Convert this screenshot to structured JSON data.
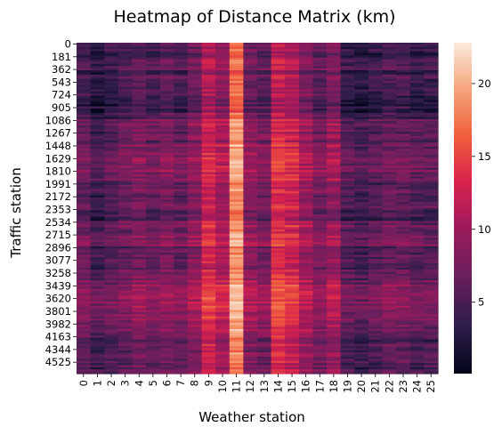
{
  "chart_data": {
    "type": "heatmap",
    "title": "Heatmap of Distance Matrix (km)",
    "xlabel": "Weather station",
    "ylabel": "Traffic station",
    "x_tick_labels": [
      "0",
      "1",
      "2",
      "3",
      "4",
      "5",
      "6",
      "7",
      "8",
      "9",
      "10",
      "11",
      "12",
      "13",
      "14",
      "15",
      "16",
      "17",
      "18",
      "19",
      "20",
      "21",
      "22",
      "23",
      "24",
      "25"
    ],
    "y_tick_labels": [
      "0",
      "181",
      "362",
      "543",
      "724",
      "905",
      "1086",
      "1267",
      "1448",
      "1629",
      "1810",
      "1991",
      "2172",
      "2353",
      "2534",
      "2715",
      "2896",
      "3077",
      "3258",
      "3439",
      "3620",
      "3801",
      "3982",
      "4163",
      "4344",
      "4525"
    ],
    "colorbar": {
      "min": 0.1,
      "max": 22.8,
      "ticks": [
        5,
        10,
        15,
        20
      ]
    },
    "column_mean_km": [
      6,
      4,
      5,
      6,
      7,
      6,
      7,
      6,
      8,
      12,
      10,
      18,
      8,
      7,
      13,
      12,
      9,
      7,
      9,
      5,
      4,
      5,
      6,
      6,
      5,
      5
    ],
    "row_band_offset_km": [
      -1.5,
      -1.2,
      -1.0,
      -2.0,
      -1.8,
      -1.5,
      1.0,
      0.5,
      1.5,
      2.5,
      2.0,
      0.5,
      0.0,
      -0.5,
      1.0,
      1.5,
      0.0,
      0.5,
      1.5,
      3.0,
      3.5,
      1.5,
      1.0,
      0.0,
      0.5,
      0.0
    ],
    "grid": false,
    "colormap": "rocket",
    "colorbar_position": "right"
  }
}
